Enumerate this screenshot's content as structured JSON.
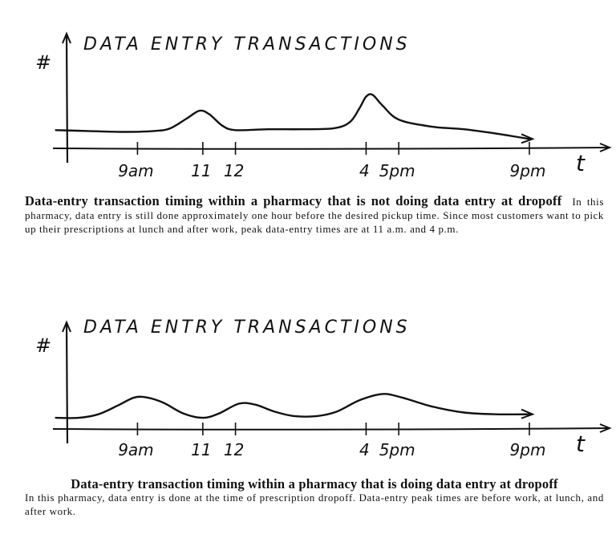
{
  "chart_data": [
    {
      "type": "line",
      "title": "DATA ENTRY TRANSACTIONS",
      "ylabel": "#",
      "xlabel": "t",
      "x_ticks": [
        {
          "label": "9am",
          "hour": 9
        },
        {
          "label": "11",
          "hour": 11
        },
        {
          "label": "12",
          "hour": 12
        },
        {
          "label": "4",
          "hour": 16
        },
        {
          "label": "5pm",
          "hour": 17
        },
        {
          "label": "9pm",
          "hour": 21
        }
      ],
      "xlim": [
        6.2,
        23
      ],
      "ylim": [
        0,
        10
      ],
      "points": [
        [
          6.5,
          1.7
        ],
        [
          7.5,
          1.6
        ],
        [
          8.5,
          1.5
        ],
        [
          9.5,
          1.6
        ],
        [
          10,
          1.9
        ],
        [
          10.5,
          3.0
        ],
        [
          10.9,
          3.9
        ],
        [
          11.2,
          3.5
        ],
        [
          11.6,
          2.2
        ],
        [
          12.0,
          1.7
        ],
        [
          13,
          1.8
        ],
        [
          14,
          1.8
        ],
        [
          15,
          1.9
        ],
        [
          15.5,
          2.6
        ],
        [
          15.8,
          4.2
        ],
        [
          16.0,
          5.5
        ],
        [
          16.2,
          5.7
        ],
        [
          16.5,
          4.5
        ],
        [
          17,
          2.9
        ],
        [
          18,
          2.1
        ],
        [
          19,
          1.8
        ],
        [
          20,
          1.3
        ],
        [
          21,
          0.7
        ]
      ],
      "arrow_at_end": true
    },
    {
      "type": "line",
      "title": "DATA ENTRY TRANSACTIONS",
      "ylabel": "#",
      "xlabel": "t",
      "x_ticks": [
        {
          "label": "9am",
          "hour": 9
        },
        {
          "label": "11",
          "hour": 11
        },
        {
          "label": "12",
          "hour": 12
        },
        {
          "label": "4",
          "hour": 16
        },
        {
          "label": "5pm",
          "hour": 17
        },
        {
          "label": "9pm",
          "hour": 21
        }
      ],
      "xlim": [
        6.2,
        23
      ],
      "ylim": [
        0,
        10
      ],
      "points": [
        [
          6.5,
          0.9
        ],
        [
          7.2,
          0.9
        ],
        [
          7.8,
          1.3
        ],
        [
          8.4,
          2.3
        ],
        [
          8.9,
          3.2
        ],
        [
          9.3,
          3.2
        ],
        [
          9.8,
          2.6
        ],
        [
          10.4,
          1.4
        ],
        [
          11.0,
          0.9
        ],
        [
          11.5,
          1.4
        ],
        [
          12.1,
          2.5
        ],
        [
          12.6,
          2.4
        ],
        [
          13.2,
          1.6
        ],
        [
          13.8,
          1.1
        ],
        [
          14.5,
          1.1
        ],
        [
          15.1,
          1.6
        ],
        [
          15.8,
          2.9
        ],
        [
          16.5,
          3.6
        ],
        [
          17.1,
          3.2
        ],
        [
          18,
          2.2
        ],
        [
          19,
          1.5
        ],
        [
          20,
          1.3
        ],
        [
          21,
          1.3
        ]
      ],
      "arrow_at_end": true
    }
  ],
  "captions": [
    {
      "title": "Data-entry transaction timing within a pharmacy that is not doing data entry at dropoff",
      "body": "In this pharmacy, data entry is still done approximately one hour before the desired pickup time. Since most customers want to pick up their prescriptions at lunch and after work, peak data-entry times are at 11 a.m. and 4 p.m."
    },
    {
      "title": "Data-entry transaction timing within a pharmacy that is doing data entry at dropoff",
      "body": "In this pharmacy, data entry is done at the time of prescription dropoff. Data-entry peak times are before work, at lunch, and after work."
    }
  ]
}
